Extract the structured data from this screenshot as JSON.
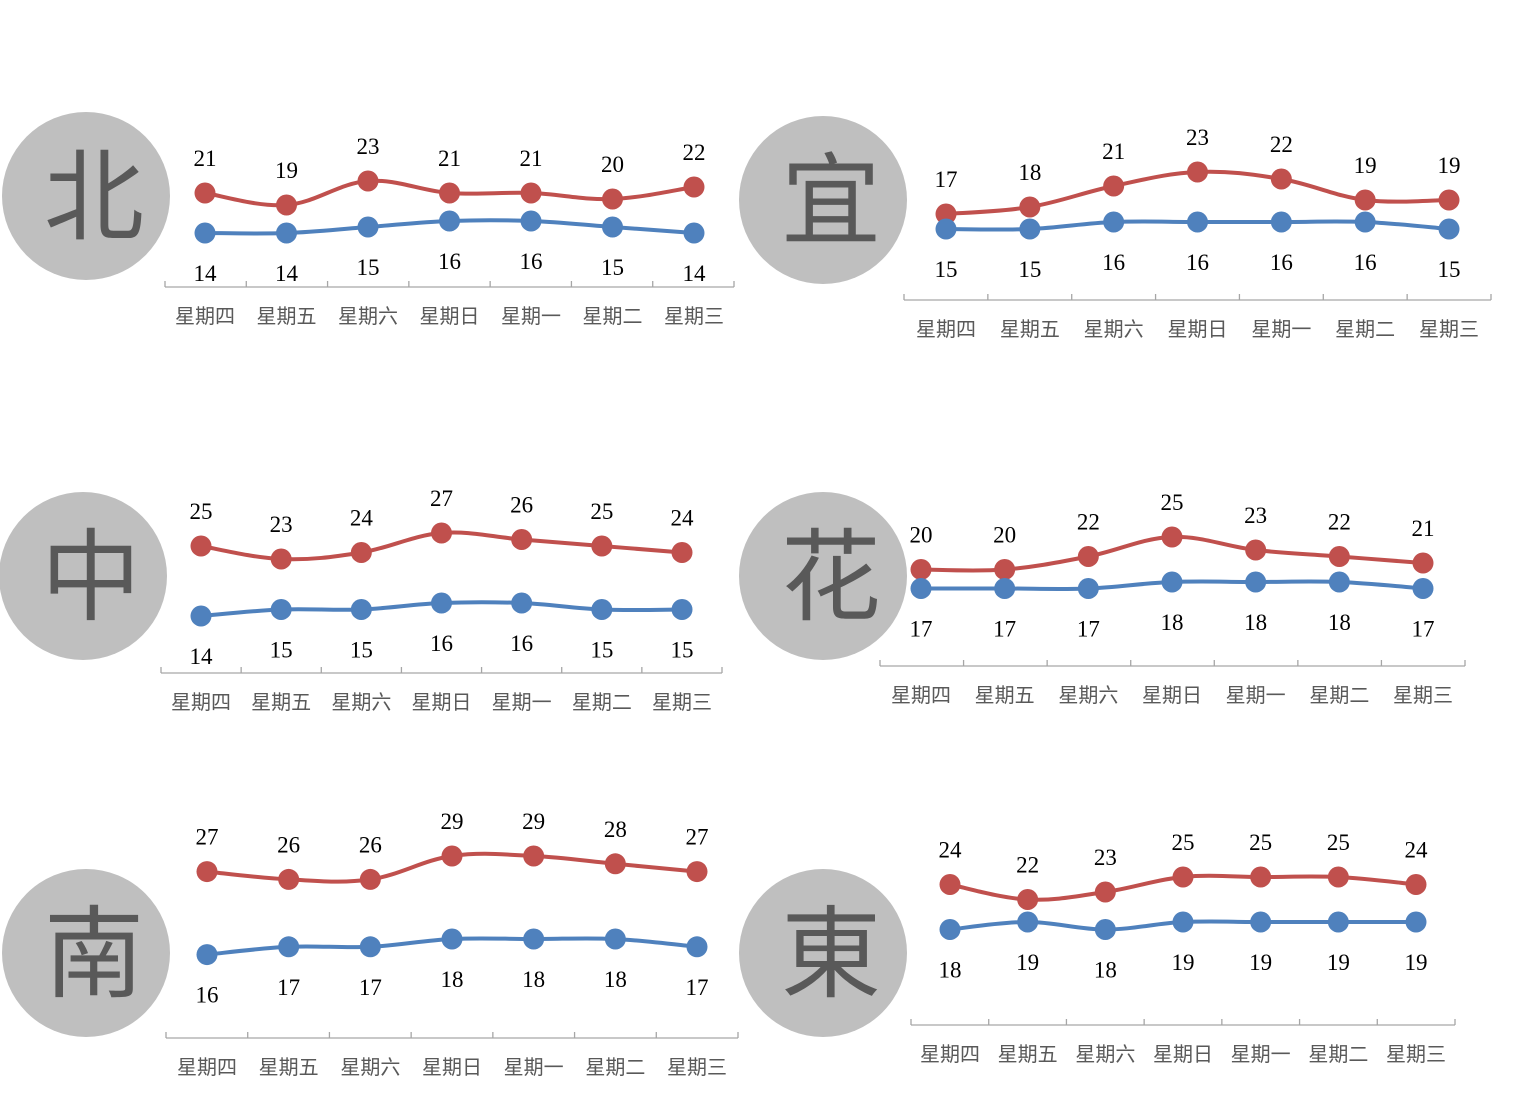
{
  "colors": {
    "high": "#c0504d",
    "low": "#4f81bd",
    "circle": "#bfbfbf",
    "char": "#595959"
  },
  "chart_data": [
    {
      "type": "line",
      "region": "北",
      "categories": [
        "星期四",
        "星期五",
        "星期六",
        "星期日",
        "星期一",
        "星期二",
        "星期三"
      ],
      "series": [
        {
          "values": [
            21,
            19,
            23,
            21,
            21,
            20,
            22
          ]
        },
        {
          "values": [
            14,
            14,
            15,
            16,
            16,
            15,
            14
          ]
        }
      ]
    },
    {
      "type": "line",
      "region": "宜",
      "categories": [
        "星期四",
        "星期五",
        "星期六",
        "星期日",
        "星期一",
        "星期二",
        "星期三"
      ],
      "series": [
        {
          "values": [
            17,
            18,
            21,
            23,
            22,
            19,
            19
          ]
        },
        {
          "values": [
            15,
            15,
            16,
            16,
            16,
            16,
            15
          ]
        }
      ]
    },
    {
      "type": "line",
      "region": "中",
      "categories": [
        "星期四",
        "星期五",
        "星期六",
        "星期日",
        "星期一",
        "星期二",
        "星期三"
      ],
      "series": [
        {
          "values": [
            25,
            23,
            24,
            27,
            26,
            25,
            24
          ]
        },
        {
          "values": [
            14,
            15,
            15,
            16,
            16,
            15,
            15
          ]
        }
      ]
    },
    {
      "type": "line",
      "region": "花",
      "categories": [
        "星期四",
        "星期五",
        "星期六",
        "星期日",
        "星期一",
        "星期二",
        "星期三"
      ],
      "series": [
        {
          "values": [
            20,
            20,
            22,
            25,
            23,
            22,
            21
          ]
        },
        {
          "values": [
            17,
            17,
            17,
            18,
            18,
            18,
            17
          ]
        }
      ]
    },
    {
      "type": "line",
      "region": "南",
      "categories": [
        "星期四",
        "星期五",
        "星期六",
        "星期日",
        "星期一",
        "星期二",
        "星期三"
      ],
      "series": [
        {
          "values": [
            27,
            26,
            26,
            29,
            29,
            28,
            27
          ]
        },
        {
          "values": [
            16,
            17,
            17,
            18,
            18,
            18,
            17
          ]
        }
      ]
    },
    {
      "type": "line",
      "region": "東",
      "categories": [
        "星期四",
        "星期五",
        "星期六",
        "星期日",
        "星期一",
        "星期二",
        "星期三"
      ],
      "series": [
        {
          "values": [
            24,
            22,
            23,
            25,
            25,
            25,
            24
          ]
        },
        {
          "values": [
            18,
            19,
            18,
            19,
            19,
            19,
            19
          ]
        }
      ]
    }
  ]
}
